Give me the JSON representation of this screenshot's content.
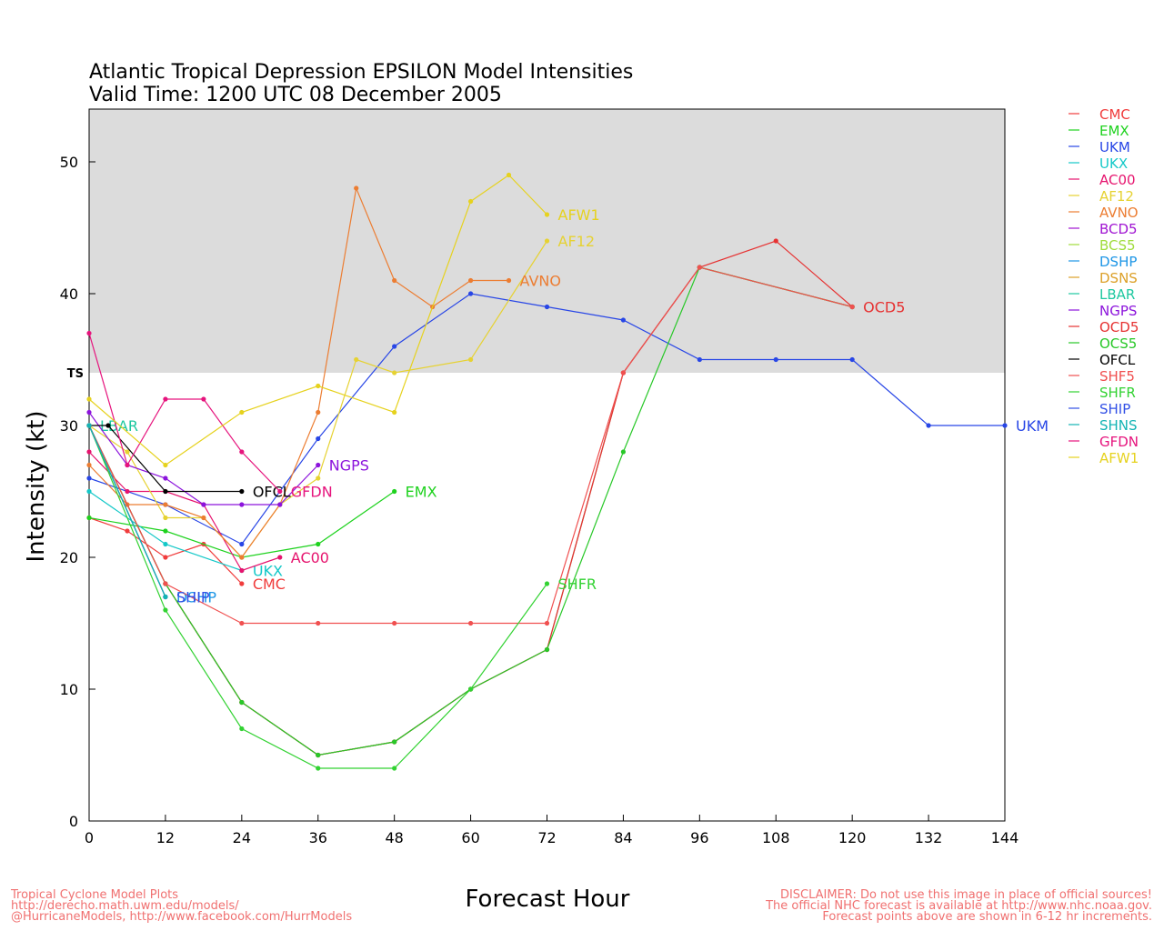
{
  "chart_data": {
    "type": "line",
    "title": "Atlantic Tropical Depression EPSILON Model Intensities",
    "subtitle": "Valid Time: 1200 UTC 08 December 2005",
    "xlabel": "Forecast Hour",
    "ylabel": "Intensity (kt)",
    "xlim": [
      0,
      144
    ],
    "ylim": [
      0,
      54
    ],
    "x_ticks": [
      0,
      12,
      24,
      36,
      48,
      60,
      72,
      84,
      96,
      108,
      120,
      132,
      144
    ],
    "y_ticks": [
      0,
      10,
      20,
      30,
      40,
      50
    ],
    "ts_threshold": 34,
    "ts_label": "TS",
    "ts_band_color": "#dcdcdc",
    "legend_position": "right",
    "series": [
      {
        "name": "CMC",
        "color": "#f03c3c",
        "x": [
          0,
          6,
          12,
          18,
          24
        ],
        "y": [
          23,
          22,
          20,
          21,
          18
        ],
        "label_at_end": true
      },
      {
        "name": "EMX",
        "color": "#1ed21e",
        "x": [
          0,
          12,
          24,
          36,
          48
        ],
        "y": [
          23,
          22,
          20,
          21,
          25
        ],
        "label_at_end": true
      },
      {
        "name": "UKM",
        "color": "#2846e6",
        "x": [
          0,
          12,
          24,
          36,
          48,
          60,
          72,
          84,
          96,
          108,
          120,
          132,
          144
        ],
        "y": [
          26,
          24,
          21,
          29,
          36,
          40,
          39,
          38,
          35,
          35,
          35,
          30,
          30
        ],
        "label_at_end": true
      },
      {
        "name": "UKX",
        "color": "#14c8c8",
        "x": [
          0,
          12,
          24
        ],
        "y": [
          25,
          21,
          19
        ],
        "label_at_end": true
      },
      {
        "name": "AC00",
        "color": "#e6146e",
        "x": [
          0,
          6,
          12,
          18,
          24,
          30
        ],
        "y": [
          28,
          25,
          25,
          24,
          19,
          20
        ],
        "label_at_end": true
      },
      {
        "name": "AF12",
        "color": "#e6d232",
        "x": [
          0,
          6,
          12,
          18,
          24,
          30,
          36,
          42,
          48,
          60,
          72
        ],
        "y": [
          30,
          28,
          23,
          23,
          20,
          24,
          26,
          35,
          34,
          35,
          44
        ],
        "label_at_end": true
      },
      {
        "name": "AVNO",
        "color": "#ec7d32",
        "x": [
          0,
          6,
          12,
          18,
          24,
          30,
          36,
          42,
          48,
          54,
          60,
          66
        ],
        "y": [
          27,
          24,
          24,
          23,
          20,
          24,
          31,
          48,
          41,
          39,
          41,
          41
        ],
        "label_at_end": true
      },
      {
        "name": "BCD5",
        "color": "#a014d2",
        "x": [
          0,
          12,
          24,
          36,
          48,
          60,
          72,
          84,
          96,
          120
        ],
        "y": [
          30,
          18,
          9,
          5,
          6,
          10,
          13,
          34,
          42,
          39
        ],
        "label_at_end": false
      },
      {
        "name": "BCS5",
        "color": "#a0dc3c",
        "x": [
          0,
          12,
          24,
          36,
          48,
          60,
          72,
          84,
          96,
          120
        ],
        "y": [
          30,
          18,
          9,
          5,
          6,
          10,
          13,
          34,
          42,
          39
        ],
        "label_at_end": false
      },
      {
        "name": "DSHP",
        "color": "#1e96e6",
        "x": [
          0,
          12
        ],
        "y": [
          30,
          17
        ],
        "label_at_end": true
      },
      {
        "name": "DSNS",
        "color": "#dca028",
        "x": [
          0,
          12
        ],
        "y": [
          30,
          17
        ],
        "label_at_end": false
      },
      {
        "name": "LBAR",
        "color": "#1ec8a0",
        "x": [
          0
        ],
        "y": [
          30
        ],
        "label_at_end": true
      },
      {
        "name": "NGPS",
        "color": "#8c14dc",
        "x": [
          0,
          6,
          12,
          18,
          24,
          30,
          36
        ],
        "y": [
          31,
          27,
          26,
          24,
          24,
          24,
          27
        ],
        "label_at_end": true
      },
      {
        "name": "OCD5",
        "color": "#e63232",
        "x": [
          0,
          12,
          24,
          36,
          48,
          60,
          72,
          84,
          96,
          108,
          120
        ],
        "y": [
          30,
          18,
          9,
          5,
          6,
          10,
          13,
          34,
          42,
          44,
          39
        ],
        "label_at_end": true
      },
      {
        "name": "OCS5",
        "color": "#28c828",
        "x": [
          0,
          12,
          24,
          36,
          48,
          60,
          72,
          84,
          96,
          120
        ],
        "y": [
          30,
          18,
          9,
          5,
          6,
          10,
          13,
          28,
          42,
          39
        ],
        "label_at_end": false
      },
      {
        "name": "OFCL",
        "color": "#000000",
        "x": [
          0,
          3,
          12,
          24
        ],
        "y": [
          30,
          30,
          25,
          25
        ],
        "label_at_end": true
      },
      {
        "name": "SHF5",
        "color": "#f05050",
        "x": [
          0,
          12,
          24,
          36,
          48,
          60,
          72,
          84,
          96,
          120
        ],
        "y": [
          30,
          18,
          15,
          15,
          15,
          15,
          15,
          34,
          42,
          39
        ],
        "label_at_end": false
      },
      {
        "name": "SHFR",
        "color": "#32d232",
        "x": [
          0,
          12,
          24,
          36,
          48,
          60,
          72
        ],
        "y": [
          30,
          16,
          7,
          4,
          4,
          10,
          18
        ],
        "label_at_end": true
      },
      {
        "name": "SHIP",
        "color": "#3250e6",
        "x": [
          0,
          12
        ],
        "y": [
          30,
          17
        ],
        "label_at_end": true
      },
      {
        "name": "SHNS",
        "color": "#14b4b4",
        "x": [
          0,
          12
        ],
        "y": [
          30,
          17
        ],
        "label_at_end": false
      },
      {
        "name": "GFDN",
        "color": "#e6147d",
        "x": [
          0,
          6,
          12,
          18,
          24,
          30
        ],
        "y": [
          37,
          27,
          32,
          32,
          28,
          25
        ],
        "label_at_end": true
      },
      {
        "name": "AFW1",
        "color": "#e6d21e",
        "x": [
          0,
          12,
          24,
          36,
          48,
          60,
          66,
          72
        ],
        "y": [
          32,
          27,
          31,
          33,
          31,
          47,
          49,
          46
        ],
        "label_at_end": true
      }
    ]
  },
  "footer": {
    "left_line1": "Tropical Cyclone Model Plots",
    "left_line2": "http://derecho.math.uwm.edu/models/",
    "left_line3": "@HurricaneModels, http://www.facebook.com/HurrModels",
    "right_line1": "DISCLAIMER: Do not use this image in place of official sources!",
    "right_line2": "The official NHC forecast is available at http://www.nhc.noaa.gov.",
    "right_line3": "Forecast points above are shown in 6-12 hr increments.",
    "color": "#f07070"
  }
}
